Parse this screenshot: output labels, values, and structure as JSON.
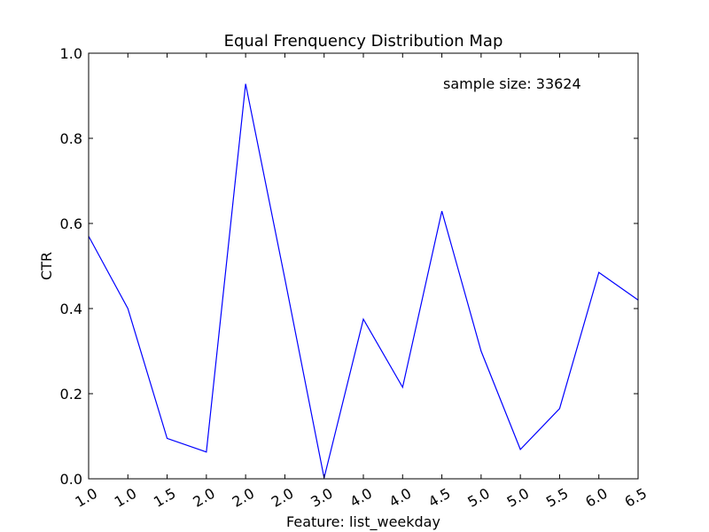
{
  "chart_data": {
    "type": "line",
    "title": "Equal Frenquency Distribution Map",
    "xlabel": "Feature: list_weekday",
    "ylabel": "CTR",
    "annotation": "sample size: 33624",
    "ylim": [
      0.0,
      1.0
    ],
    "yticks": [
      "0.0",
      "0.2",
      "0.4",
      "0.6",
      "0.8",
      "1.0"
    ],
    "categories": [
      "1.0",
      "1.0",
      "1.5",
      "2.0",
      "2.0",
      "2.0",
      "3.0",
      "4.0",
      "4.0",
      "4.5",
      "5.0",
      "5.0",
      "5.5",
      "6.0",
      "6.5"
    ],
    "series": [
      {
        "values": [
          0.57,
          0.4,
          0.095,
          0.063,
          0.928,
          0.47,
          0.002,
          0.375,
          0.215,
          0.629,
          0.3,
          0.069,
          0.165,
          0.485,
          0.42
        ],
        "color": "#0000ff"
      }
    ],
    "grid": false,
    "frame_color": "#000000"
  }
}
